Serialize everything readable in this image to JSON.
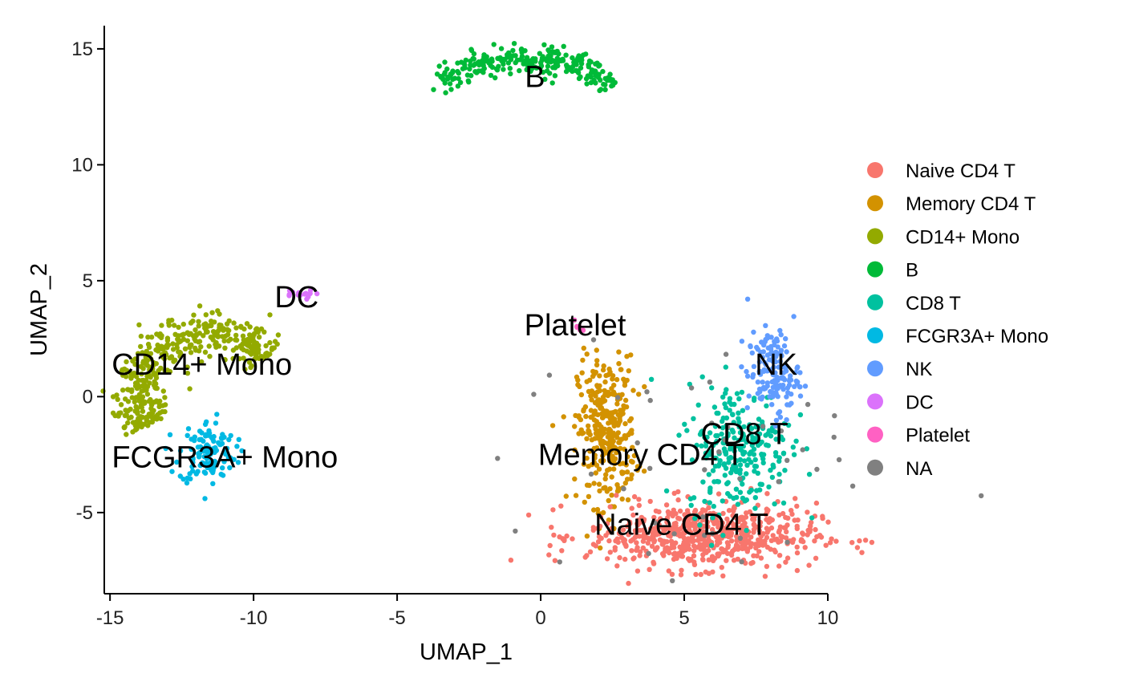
{
  "chart_data": {
    "type": "scatter",
    "xlabel": "UMAP_1",
    "ylabel": "UMAP_2",
    "xlim": [
      -15.2,
      10.0
    ],
    "ylim": [
      -8.5,
      16.0
    ],
    "x_ticks": [
      -15,
      -10,
      -5,
      0,
      5,
      10
    ],
    "y_ticks": [
      -5,
      0,
      5,
      10,
      15
    ],
    "x_tick_labels": [
      "-15",
      "-10",
      "-5",
      "0",
      "5",
      "10"
    ],
    "y_tick_labels": [
      "-5",
      "0",
      "5",
      "10",
      "15"
    ],
    "grid": false,
    "legend_position": "right",
    "series": [
      {
        "name": "Naive CD4 T",
        "color": "#F8766D"
      },
      {
        "name": "Memory CD4 T",
        "color": "#D39200"
      },
      {
        "name": "CD14+ Mono",
        "color": "#93AA00"
      },
      {
        "name": "B",
        "color": "#00BA38"
      },
      {
        "name": "CD8 T",
        "color": "#00C19F"
      },
      {
        "name": "FCGR3A+ Mono",
        "color": "#00B9E3"
      },
      {
        "name": "NK",
        "color": "#619CFF"
      },
      {
        "name": "DC",
        "color": "#DB72FB"
      },
      {
        "name": "Platelet",
        "color": "#FF61C3"
      },
      {
        "name": "NA",
        "color": "#808080"
      }
    ],
    "cluster_labels": [
      {
        "text": "B",
        "x": -0.2,
        "y": 13.8
      },
      {
        "text": "DC",
        "x": -8.5,
        "y": 4.3
      },
      {
        "text": "Platelet",
        "x": 1.2,
        "y": 3.1
      },
      {
        "text": "CD14+ Mono",
        "x": -11.8,
        "y": 1.4
      },
      {
        "text": "NK",
        "x": 8.2,
        "y": 1.4
      },
      {
        "text": "CD8 T",
        "x": 7.1,
        "y": -1.6
      },
      {
        "text": "FCGR3A+ Mono",
        "x": -11.0,
        "y": -2.6
      },
      {
        "text": "Memory CD4 T",
        "x": 3.5,
        "y": -2.5
      },
      {
        "text": "Naive CD4 T",
        "x": 4.9,
        "y": -5.5
      }
    ],
    "point_regions": [
      {
        "series": "B",
        "shape": "arc",
        "cx": -0.4,
        "cy": 13.6,
        "x0": -3.5,
        "x1": 2.5,
        "n": 260
      },
      {
        "series": "CD14+ Mono",
        "shape": "ring",
        "cx": -11.5,
        "cy": 0.0,
        "r": 2.6,
        "a0": 40,
        "a1": 210,
        "n": 420
      },
      {
        "series": "FCGR3A+ Mono",
        "shape": "blob",
        "cx": -11.6,
        "cy": -2.4,
        "sx": 0.5,
        "sy": 0.7,
        "n": 120
      },
      {
        "series": "DC",
        "shape": "blob",
        "cx": -8.5,
        "cy": 4.4,
        "sx": 0.3,
        "sy": 0.1,
        "n": 15
      },
      {
        "series": "Platelet",
        "shape": "blob",
        "cx": 1.3,
        "cy": 3.0,
        "sx": 0.1,
        "sy": 0.2,
        "n": 6
      },
      {
        "series": "Memory CD4 T",
        "shape": "blob",
        "cx": 2.3,
        "cy": -1.5,
        "sx": 0.5,
        "sy": 1.6,
        "n": 320
      },
      {
        "series": "Naive CD4 T",
        "shape": "blob",
        "cx": 5.6,
        "cy": -6.0,
        "sx": 2.0,
        "sy": 0.7,
        "n": 620
      },
      {
        "series": "CD8 T",
        "shape": "blob",
        "cx": 6.9,
        "cy": -2.2,
        "sx": 0.9,
        "sy": 1.4,
        "n": 260
      },
      {
        "series": "NK",
        "shape": "blob",
        "cx": 8.1,
        "cy": 1.0,
        "sx": 0.45,
        "sy": 0.9,
        "n": 150
      },
      {
        "series": "NA",
        "shape": "blob",
        "cx": 5.5,
        "cy": -3.0,
        "sx": 3.5,
        "sy": 3.0,
        "n": 45
      }
    ]
  }
}
